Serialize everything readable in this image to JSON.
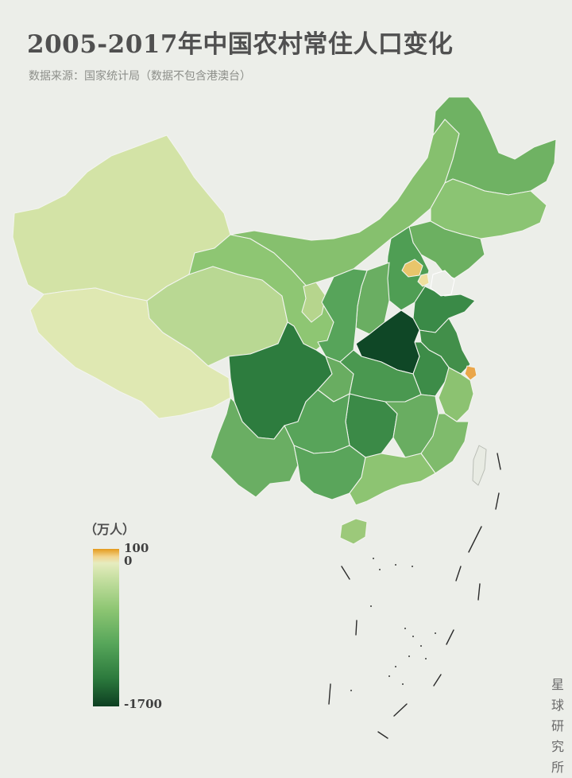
{
  "title": "2005-2017年中国农村常住人口变化",
  "subtitle": "数据来源：国家统计局（数据不包含港澳台）",
  "legend": {
    "unit": "（万人）",
    "max_label": "100",
    "zero_label": "0",
    "min_label": "-1700",
    "max_color": "#e49a1c",
    "zero_color": "#e6ecbf",
    "min_color": "#0d3f21"
  },
  "credit": "星球研究所",
  "regions": {
    "xinjiang": "#d3e3a6",
    "xizang": "#dfe8b2",
    "qinghai": "#b9d893",
    "gansu": "#8ec673",
    "neimenggu": "#86c06e",
    "heilongjiang": "#6fb263",
    "jilin": "#8bc473",
    "liaoning": "#6cb061",
    "beijing": "#e9c56b",
    "tianjin": "#efdf9e",
    "hebei": "#4f9e54",
    "shanxi": "#6aae62",
    "ningxia": "#b6d58d",
    "shaanxi": "#57a45a",
    "shandong": "#3a8a47",
    "henan": "#0f4726",
    "jiangsu": "#428f4a",
    "anhui": "#3d8c48",
    "shanghai": "#eaa64a",
    "zhejiang": "#8cc271",
    "sichuan": "#2d7c3e",
    "chongqing": "#69ad61",
    "hubei": "#4a9850",
    "hunan": "#3b8a47",
    "jiangxi": "#69ad61",
    "fujian": "#7fbb6c",
    "guizhou": "#58a45a",
    "yunnan": "#6aae63",
    "guangxi": "#5aa55b",
    "guangdong": "#8dc472",
    "hainan": "#9cc97a",
    "taiwan": "#e8ebe3"
  }
}
